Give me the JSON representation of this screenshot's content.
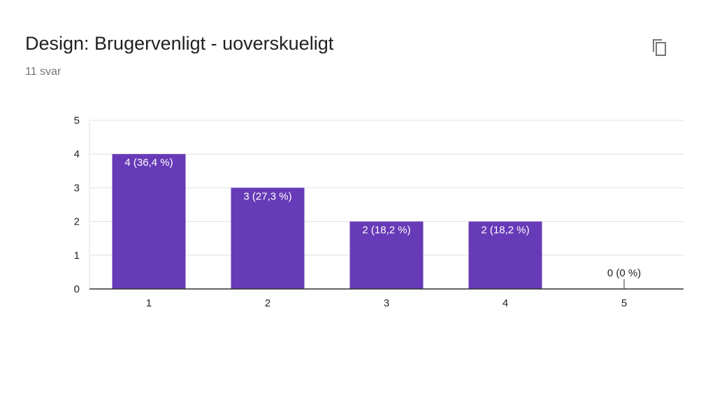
{
  "header": {
    "title": "Design: Brugervenligt - uoverskueligt",
    "response_count": "11 svar",
    "copy_icon": "copy-icon"
  },
  "colors": {
    "bar": "#673AB7",
    "bar_label": "#ffffff",
    "zero_label": "#212121",
    "grid": "#e0e0e0",
    "axis": "#333333",
    "tick_text": "#222222"
  },
  "chart_data": {
    "type": "bar",
    "categories": [
      "1",
      "2",
      "3",
      "4",
      "5"
    ],
    "values": [
      4,
      3,
      2,
      2,
      0
    ],
    "data_labels": [
      "4 (36,4 %)",
      "3 (27,3 %)",
      "2 (18,2 %)",
      "2 (18,2 %)",
      "0 (0 %)"
    ],
    "yticks": [
      "0",
      "1",
      "2",
      "3",
      "4",
      "5"
    ],
    "ylim": [
      0,
      5
    ],
    "grid": true,
    "legend": "none",
    "xlabel": "",
    "ylabel": ""
  }
}
